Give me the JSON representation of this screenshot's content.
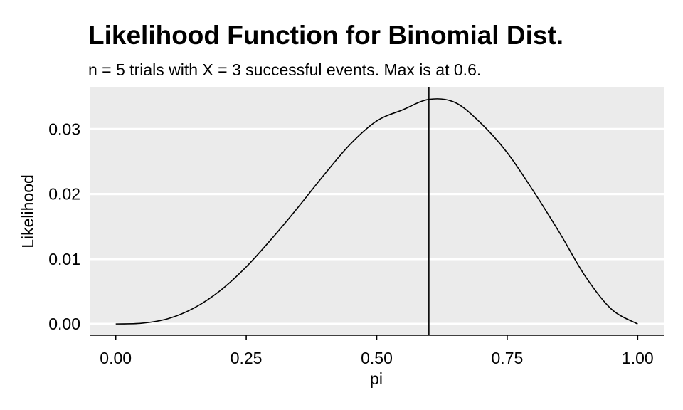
{
  "chart_data": {
    "type": "line",
    "title": "Likelihood Function for Binomial Dist.",
    "subtitle": "n = 5 trials with X = 3 successful events. Max is at 0.6.",
    "xlabel": "pi",
    "ylabel": "Likelihood",
    "xlim": [
      -0.05,
      1.05
    ],
    "ylim": [
      -0.00174,
      0.0365
    ],
    "x_ticks": [
      0.0,
      0.25,
      0.5,
      0.75,
      1.0
    ],
    "x_tick_labels": [
      "0.00",
      "0.25",
      "0.50",
      "0.75",
      "1.00"
    ],
    "y_ticks": [
      0.0,
      0.01,
      0.02,
      0.03
    ],
    "y_tick_labels": [
      "0.00",
      "0.01",
      "0.02",
      "0.03"
    ],
    "grid": true,
    "panel_background": "#EBEBEB",
    "grid_color": "#FFFFFF",
    "line_color": "#000000",
    "vline_x": 0.6,
    "series": [
      {
        "x": [
          0.0,
          0.05,
          0.1,
          0.15,
          0.2,
          0.25,
          0.3,
          0.35,
          0.4,
          0.45,
          0.5,
          0.55,
          0.6,
          0.65,
          0.7,
          0.75,
          0.8,
          0.85,
          0.9,
          0.95,
          1.0
        ],
        "y": [
          0.0,
          0.000113,
          0.00081,
          0.002456,
          0.00512,
          0.008789,
          0.01323,
          0.018025,
          0.02304,
          0.027726,
          0.03125,
          0.032968,
          0.03456,
          0.034089,
          0.03087,
          0.026367,
          0.02048,
          0.014092,
          0.00729,
          0.002256,
          0.0
        ]
      }
    ]
  }
}
